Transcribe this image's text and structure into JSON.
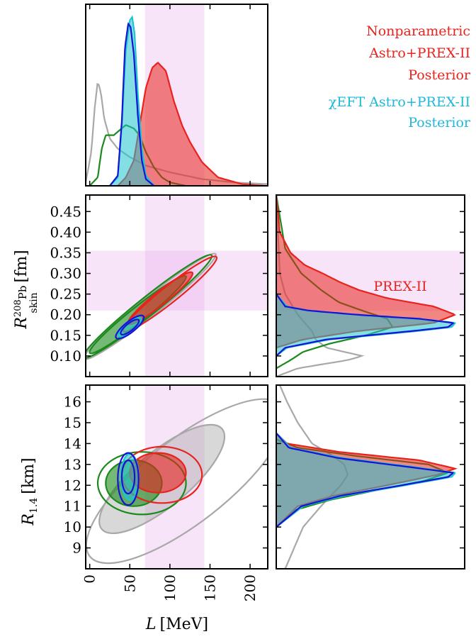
{
  "legend": {
    "nonparametric": [
      "Nonparametric",
      "Astro+PREX-II",
      "Posterior"
    ],
    "chieft": [
      "χEFT Astro+PREX-II",
      "Posterior"
    ],
    "nonparametric_color": "#e8231e",
    "chieft_color": "#1fb8d8"
  },
  "colors": {
    "red": "#e8231e",
    "cyan": "#1fc4d0",
    "blue": "#1414d6",
    "green": "#1a8a1a",
    "gray": "#a8a8a8",
    "band": "#e9a6ec"
  },
  "chart_data": {
    "type": "corner",
    "parameters": [
      "L [MeV]",
      "R_skin^208Pb [fm]",
      "R_1.4 [km]"
    ],
    "axes": {
      "L": {
        "label": "L [MeV]",
        "range": [
          -5,
          222
        ],
        "ticks": [
          0,
          50,
          100,
          150,
          200
        ]
      },
      "Rskin": {
        "label": "R_skin^208Pb [fm]",
        "range": [
          0.05,
          0.49
        ],
        "ticks": [
          0.1,
          0.15,
          0.2,
          0.25,
          0.3,
          0.35,
          0.4,
          0.45
        ]
      },
      "R14": {
        "label": "R_1.4 [km]",
        "range": [
          8,
          16.8
        ],
        "ticks": [
          9,
          10,
          11,
          12,
          13,
          14,
          15,
          16
        ]
      }
    },
    "prex_band": {
      "label": "PREX-II",
      "L_range": [
        69,
        143
      ],
      "Rskin_range": [
        0.21,
        0.355
      ]
    },
    "series": [
      {
        "name": "Nonparametric Astro+PREX-II Posterior",
        "color": "red",
        "filled": true,
        "L_marginal": {
          "x": [
            35,
            45,
            55,
            62,
            70,
            78,
            85,
            95,
            105,
            115,
            125,
            140,
            160,
            190,
            220
          ],
          "y": [
            0,
            0.05,
            0.15,
            0.35,
            0.58,
            0.7,
            0.73,
            0.68,
            0.5,
            0.36,
            0.26,
            0.14,
            0.05,
            0.01,
            0
          ]
        },
        "Rskin_marginal": {
          "x": [
            0.12,
            0.14,
            0.16,
            0.18,
            0.2,
            0.22,
            0.24,
            0.26,
            0.28,
            0.3,
            0.32,
            0.35,
            0.4,
            0.49
          ],
          "y": [
            0,
            0.15,
            0.45,
            0.88,
            1.0,
            0.88,
            0.62,
            0.46,
            0.35,
            0.26,
            0.16,
            0.08,
            0.02,
            0
          ]
        },
        "R14_marginal": {
          "x": [
            10,
            11,
            11.5,
            12,
            12.5,
            12.8,
            13.2,
            13.6,
            14,
            14.5
          ],
          "y": [
            0,
            0.12,
            0.32,
            0.62,
            0.9,
            1.0,
            0.8,
            0.35,
            0.06,
            0
          ]
        }
      },
      {
        "name": "χEFT Astro+PREX-II Posterior",
        "color": "cyan",
        "filled": true,
        "L_marginal": {
          "x": [
            25,
            35,
            40,
            45,
            50,
            53,
            56,
            60,
            65,
            70,
            80
          ],
          "y": [
            0,
            0.05,
            0.35,
            0.8,
            0.98,
            1.0,
            0.9,
            0.55,
            0.22,
            0.06,
            0
          ]
        },
        "Rskin_marginal": {
          "x": [
            0.1,
            0.12,
            0.14,
            0.16,
            0.17,
            0.18,
            0.19,
            0.2,
            0.21,
            0.22,
            0.25
          ],
          "y": [
            0,
            0.06,
            0.3,
            0.78,
            0.98,
            1.0,
            0.8,
            0.45,
            0.18,
            0.06,
            0
          ]
        },
        "R14_marginal": {
          "x": [
            10,
            11,
            11.5,
            12,
            12.4,
            12.6,
            12.9,
            13.3,
            13.8,
            14.5
          ],
          "y": [
            0,
            0.15,
            0.38,
            0.72,
            0.98,
            1.0,
            0.75,
            0.38,
            0.08,
            0
          ]
        }
      },
      {
        "name": "",
        "color": "blue",
        "filled": false,
        "L_marginal": {
          "x": [
            25,
            35,
            40,
            44,
            48,
            51,
            55,
            60,
            65,
            70,
            80
          ],
          "y": [
            0,
            0.06,
            0.38,
            0.82,
            0.96,
            0.94,
            0.78,
            0.42,
            0.15,
            0.04,
            0
          ]
        },
        "Rskin_marginal": {
          "x": [
            0.1,
            0.12,
            0.14,
            0.16,
            0.17,
            0.18,
            0.19,
            0.2,
            0.21,
            0.22,
            0.25
          ],
          "y": [
            0,
            0.05,
            0.28,
            0.75,
            0.96,
            0.99,
            0.8,
            0.45,
            0.18,
            0.05,
            0
          ]
        },
        "R14_marginal": {
          "x": [
            10,
            11,
            11.5,
            12,
            12.4,
            12.6,
            12.9,
            13.3,
            13.8,
            14.5
          ],
          "y": [
            0,
            0.14,
            0.36,
            0.7,
            0.96,
            0.99,
            0.72,
            0.35,
            0.07,
            0
          ]
        }
      },
      {
        "name": "",
        "color": "green",
        "filled": false,
        "L_marginal": {
          "x": [
            0,
            10,
            15,
            20,
            30,
            45,
            55,
            62,
            70,
            80,
            90,
            100,
            110,
            120
          ],
          "y": [
            0,
            0.05,
            0.22,
            0.3,
            0.3,
            0.36,
            0.34,
            0.3,
            0.2,
            0.11,
            0.05,
            0.02,
            0.01,
            0
          ]
        },
        "Rskin_marginal": {
          "x": [
            0.07,
            0.09,
            0.11,
            0.13,
            0.15,
            0.17,
            0.19,
            0.21,
            0.23,
            0.26,
            0.3,
            0.36,
            0.49
          ],
          "y": [
            0,
            0.08,
            0.15,
            0.3,
            0.5,
            0.65,
            0.62,
            0.48,
            0.35,
            0.25,
            0.14,
            0.05,
            0
          ]
        },
        "R14_marginal": {
          "x": [
            10,
            10.8,
            11.3,
            11.8,
            12.2,
            12.6,
            13,
            13.4,
            13.8,
            14.2
          ],
          "y": [
            0,
            0.1,
            0.3,
            0.58,
            0.82,
            0.96,
            0.85,
            0.45,
            0.12,
            0
          ]
        }
      },
      {
        "name": "",
        "color": "gray",
        "filled": false,
        "L_marginal": {
          "x": [
            -5,
            2,
            6,
            10,
            14,
            18,
            25,
            35,
            50,
            70,
            100,
            140,
            180,
            222
          ],
          "y": [
            0.02,
            0.2,
            0.45,
            0.62,
            0.55,
            0.4,
            0.28,
            0.22,
            0.17,
            0.12,
            0.08,
            0.04,
            0.02,
            0.01
          ]
        },
        "Rskin_marginal": {
          "x": [
            0.05,
            0.07,
            0.09,
            0.1,
            0.12,
            0.14,
            0.16,
            0.18,
            0.2,
            0.25,
            0.3,
            0.49
          ],
          "y": [
            0,
            0.12,
            0.4,
            0.48,
            0.28,
            0.22,
            0.2,
            0.16,
            0.12,
            0.05,
            0.02,
            0
          ]
        },
        "R14_marginal": {
          "x": [
            8,
            9,
            10,
            11,
            12,
            12.5,
            13,
            13.5,
            14,
            15,
            16,
            16.8
          ],
          "y": [
            0.05,
            0.1,
            0.15,
            0.25,
            0.36,
            0.4,
            0.38,
            0.3,
            0.2,
            0.12,
            0.06,
            0.02
          ]
        }
      }
    ],
    "joint_L_Rskin": {
      "gray": [
        {
          "center": [
            75,
            0.22
          ],
          "axes": [
            82,
            0.022
          ],
          "angle_data_slope": 0.00155
        }
      ],
      "green": [
        {
          "center": [
            60,
            0.2
          ],
          "axes": [
            60,
            0.018
          ],
          "angle_data_slope": 0.00155,
          "filled": true
        },
        {
          "center": [
            72,
            0.22
          ],
          "axes": [
            80,
            0.022
          ],
          "angle_data_slope": 0.00155
        }
      ],
      "red": [
        {
          "center": [
            88,
            0.24
          ],
          "axes": [
            40,
            0.016
          ],
          "angle_data_slope": 0.00155,
          "filled": true
        },
        {
          "center": [
            100,
            0.25
          ],
          "axes": [
            58,
            0.02
          ],
          "angle_data_slope": 0.00155
        }
      ],
      "cyan": [
        {
          "center": [
            50,
            0.17
          ],
          "axes": [
            14,
            0.01
          ],
          "angle_data_slope": 0.00155,
          "filled": true
        }
      ],
      "blue": [
        {
          "center": [
            50,
            0.17
          ],
          "axes": [
            11,
            0.009
          ],
          "angle_data_slope": 0.00155
        },
        {
          "center": [
            50,
            0.17
          ],
          "axes": [
            17,
            0.013
          ],
          "angle_data_slope": 0.00155
        }
      ]
    },
    "joint_L_R14": {
      "gray": [
        {
          "center": [
            90,
            12.3
          ],
          "axes": [
            75,
            1.3
          ],
          "angle_data_slope": 0.032,
          "filled": true
        },
        {
          "center": [
            120,
            12.2
          ],
          "axes": [
            120,
            2.0
          ],
          "angle_data_slope": 0.03
        }
      ],
      "green": [
        {
          "center": [
            55,
            12.1
          ],
          "axes": [
            35,
            1.1
          ],
          "filled": true
        },
        {
          "center": [
            65,
            12.1
          ],
          "axes": [
            55,
            1.5
          ]
        }
      ],
      "red": [
        {
          "center": [
            85,
            12.6
          ],
          "axes": [
            35,
            0.95
          ],
          "filled": true
        },
        {
          "center": [
            90,
            12.5
          ],
          "axes": [
            50,
            1.35
          ]
        }
      ],
      "cyan": [
        {
          "center": [
            50,
            12.4
          ],
          "axes": [
            11,
            1.1
          ],
          "filled": true
        }
      ],
      "blue": [
        {
          "center": [
            48,
            12.4
          ],
          "axes": [
            8,
            0.8
          ]
        },
        {
          "center": [
            48,
            12.3
          ],
          "axes": [
            13,
            1.25
          ]
        }
      ]
    }
  }
}
